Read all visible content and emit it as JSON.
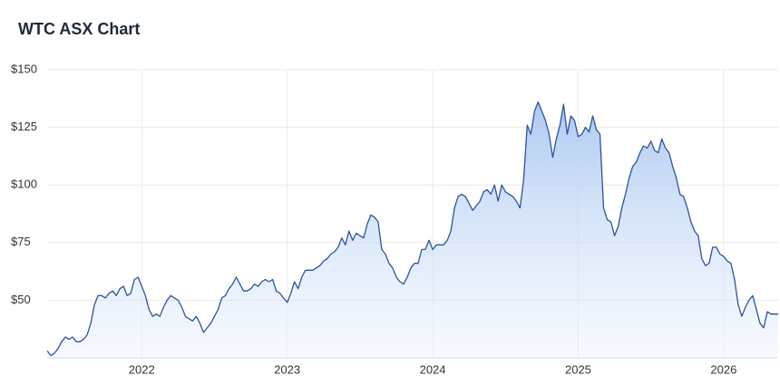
{
  "chart_data": {
    "type": "area",
    "title": "WTC ASX Chart",
    "x": [
      2021.35,
      2021.375,
      2021.4,
      2021.425,
      2021.45,
      2021.475,
      2021.5,
      2021.525,
      2021.55,
      2021.575,
      2021.6,
      2021.625,
      2021.65,
      2021.675,
      2021.7,
      2021.725,
      2021.75,
      2021.775,
      2021.8,
      2021.825,
      2021.85,
      2021.875,
      2021.9,
      2021.925,
      2021.95,
      2021.975,
      2022,
      2022.025,
      2022.05,
      2022.075,
      2022.1,
      2022.125,
      2022.15,
      2022.175,
      2022.2,
      2022.225,
      2022.25,
      2022.275,
      2022.3,
      2022.325,
      2022.35,
      2022.375,
      2022.4,
      2022.425,
      2022.45,
      2022.475,
      2022.5,
      2022.525,
      2022.55,
      2022.575,
      2022.6,
      2022.625,
      2022.65,
      2022.675,
      2022.7,
      2022.725,
      2022.75,
      2022.775,
      2022.8,
      2022.825,
      2022.85,
      2022.875,
      2022.9,
      2022.925,
      2022.95,
      2022.975,
      2023,
      2023.025,
      2023.05,
      2023.075,
      2023.1,
      2023.125,
      2023.15,
      2023.175,
      2023.2,
      2023.225,
      2023.25,
      2023.275,
      2023.3,
      2023.325,
      2023.35,
      2023.375,
      2023.4,
      2023.425,
      2023.45,
      2023.475,
      2023.5,
      2023.525,
      2023.55,
      2023.575,
      2023.6,
      2023.625,
      2023.65,
      2023.675,
      2023.7,
      2023.725,
      2023.75,
      2023.775,
      2023.8,
      2023.825,
      2023.85,
      2023.875,
      2023.9,
      2023.925,
      2023.95,
      2023.975,
      2024,
      2024.025,
      2024.05,
      2024.075,
      2024.1,
      2024.125,
      2024.15,
      2024.175,
      2024.2,
      2024.225,
      2024.25,
      2024.275,
      2024.3,
      2024.325,
      2024.35,
      2024.375,
      2024.4,
      2024.425,
      2024.45,
      2024.475,
      2024.5,
      2024.525,
      2024.55,
      2024.575,
      2024.6,
      2024.625,
      2024.65,
      2024.675,
      2024.7,
      2024.725,
      2024.75,
      2024.775,
      2024.8,
      2024.825,
      2024.85,
      2024.875,
      2024.9,
      2024.925,
      2024.95,
      2024.975,
      2025,
      2025.025,
      2025.05,
      2025.075,
      2025.1,
      2025.125,
      2025.15,
      2025.175,
      2025.2,
      2025.225,
      2025.25,
      2025.275,
      2025.3,
      2025.325,
      2025.35,
      2025.375,
      2025.4,
      2025.425,
      2025.45,
      2025.475,
      2025.5,
      2025.525,
      2025.55,
      2025.575,
      2025.6,
      2025.625,
      2025.65,
      2025.675,
      2025.7,
      2025.725,
      2025.75,
      2025.775,
      2025.8,
      2025.825,
      2025.85,
      2025.875,
      2025.9,
      2025.925,
      2025.95,
      2025.975,
      2026,
      2026.025,
      2026.05,
      2026.075,
      2026.1,
      2026.125,
      2026.15,
      2026.175,
      2026.2,
      2026.225,
      2026.25,
      2026.275,
      2026.3,
      2026.325,
      2026.35,
      2026.375
    ],
    "values": [
      28,
      26,
      27,
      29,
      32,
      34,
      33,
      34,
      32,
      32,
      33,
      35,
      40,
      48,
      52,
      52,
      51,
      53,
      54,
      52,
      55,
      56,
      52,
      53,
      59,
      60,
      56,
      52,
      46,
      43,
      44,
      43,
      47,
      50,
      52,
      51,
      50,
      47,
      43,
      42,
      41,
      43,
      40,
      36,
      38,
      40,
      43,
      46,
      51,
      52,
      55,
      57,
      60,
      57,
      54,
      54,
      55,
      57,
      56,
      58,
      59,
      58,
      59,
      54,
      53,
      51,
      49,
      53,
      58,
      55,
      60,
      63,
      63,
      63,
      64,
      65,
      67,
      68,
      70,
      71,
      73,
      77,
      74,
      80,
      76,
      79,
      78,
      77,
      83,
      87,
      86,
      84,
      72,
      70,
      66,
      64,
      60,
      58,
      57,
      60,
      64,
      66,
      66,
      72,
      72,
      76,
      72,
      74,
      74,
      74,
      76,
      80,
      90,
      95,
      96,
      95,
      92,
      89,
      91,
      93,
      97,
      98,
      96,
      100,
      93,
      100,
      97,
      96,
      95,
      93,
      90,
      102,
      126,
      122,
      132,
      136,
      132,
      128,
      122,
      112,
      120,
      126,
      135,
      122,
      130,
      128,
      121,
      122,
      125,
      123,
      130,
      124,
      122,
      90,
      85,
      84,
      78,
      82,
      90,
      96,
      103,
      108,
      110,
      114,
      117,
      116,
      119,
      115,
      114,
      120,
      116,
      114,
      108,
      103,
      96,
      95,
      90,
      84,
      80,
      78,
      68,
      65,
      66,
      73,
      73,
      70,
      69,
      67,
      66,
      59,
      48,
      43,
      47,
      50,
      52,
      46,
      40,
      38,
      45,
      44,
      44,
      44
    ],
    "color": "#2c539e",
    "xlim": [
      2021.35,
      2026.375
    ],
    "xticks": [
      2022,
      2023,
      2024,
      2025,
      2026
    ],
    "ylim": [
      25,
      150
    ],
    "yticks": [
      {
        "value": 50,
        "label": "$50"
      },
      {
        "value": 75,
        "label": "$75"
      },
      {
        "value": 100,
        "label": "$100"
      },
      {
        "value": 125,
        "label": "$125"
      },
      {
        "value": 150,
        "label": "$150"
      }
    ],
    "grid": true
  }
}
